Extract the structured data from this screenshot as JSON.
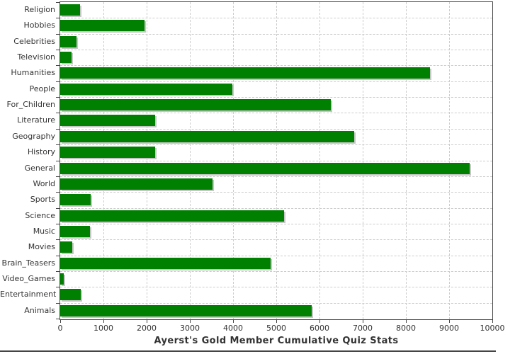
{
  "chart_data": {
    "type": "bar",
    "orientation": "horizontal",
    "title": "Ayerst's Gold Member Cumulative Quiz Stats",
    "xlabel": "",
    "ylabel": "",
    "categories": [
      "Religion",
      "Hobbies",
      "Celebrities",
      "Television",
      "Humanities",
      "People",
      "For_Children",
      "Literature",
      "Geography",
      "History",
      "General",
      "World",
      "Sports",
      "Science",
      "Music",
      "Movies",
      "Brain_Teasers",
      "Video_Games",
      "Entertainment",
      "Animals"
    ],
    "values": [
      460,
      1950,
      370,
      270,
      8560,
      3990,
      6260,
      2200,
      6800,
      2200,
      9480,
      3520,
      710,
      5180,
      690,
      280,
      4870,
      80,
      480,
      5820
    ],
    "xlim": [
      0,
      10000
    ],
    "x_ticks": [
      0,
      1000,
      2000,
      3000,
      4000,
      5000,
      6000,
      7000,
      8000,
      9000,
      10000
    ],
    "grid": "dashed, vertical at each x tick and horizontal at each category boundary",
    "legend": "none",
    "colors": {
      "bar_fill": "#008000",
      "bar_shadow": "#c6c6c6",
      "gridline": "#cccccc",
      "axis": "#444444",
      "text": "#333333",
      "background": "#ffffff"
    }
  }
}
